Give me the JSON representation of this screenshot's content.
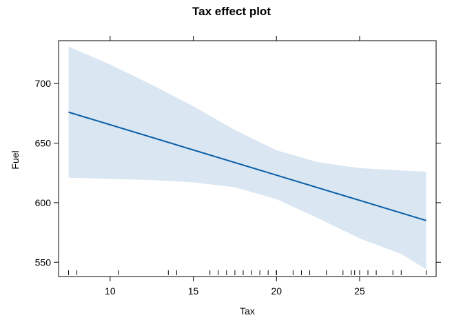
{
  "chart_data": {
    "type": "line",
    "title": "Tax effect plot",
    "xlabel": "Tax",
    "ylabel": "Fuel",
    "xlim": [
      6.9,
      29.6
    ],
    "ylim": [
      538,
      736
    ],
    "xticks": [
      10,
      15,
      20,
      25
    ],
    "yticks": [
      550,
      600,
      650,
      700
    ],
    "fit_line": {
      "x": [
        7.5,
        29.0
      ],
      "y": [
        676,
        585
      ]
    },
    "confidence_band": {
      "x": [
        7.5,
        10,
        12.5,
        15,
        17.5,
        20,
        22.5,
        25,
        27.5,
        29.0
      ],
      "upper": [
        731,
        716,
        699,
        681,
        661,
        644,
        634,
        629,
        627,
        626
      ],
      "lower": [
        621,
        620,
        619,
        617,
        613,
        603,
        587,
        570,
        557,
        544
      ]
    },
    "rug": [
      7.5,
      8.0,
      10.5,
      13.5,
      14.0,
      16.0,
      16.5,
      17.0,
      17.5,
      18.0,
      18.5,
      19.0,
      19.5,
      20.0,
      20.0,
      20.0,
      21.0,
      21.5,
      22.0,
      23.0,
      24.0,
      24.5,
      24.7,
      25.0,
      25.5,
      26.0,
      27.0,
      27.5,
      29.0
    ],
    "colors": {
      "line": "#0a5ea8",
      "band": "#dae6f1",
      "frame": "#000000"
    },
    "grid": false
  }
}
